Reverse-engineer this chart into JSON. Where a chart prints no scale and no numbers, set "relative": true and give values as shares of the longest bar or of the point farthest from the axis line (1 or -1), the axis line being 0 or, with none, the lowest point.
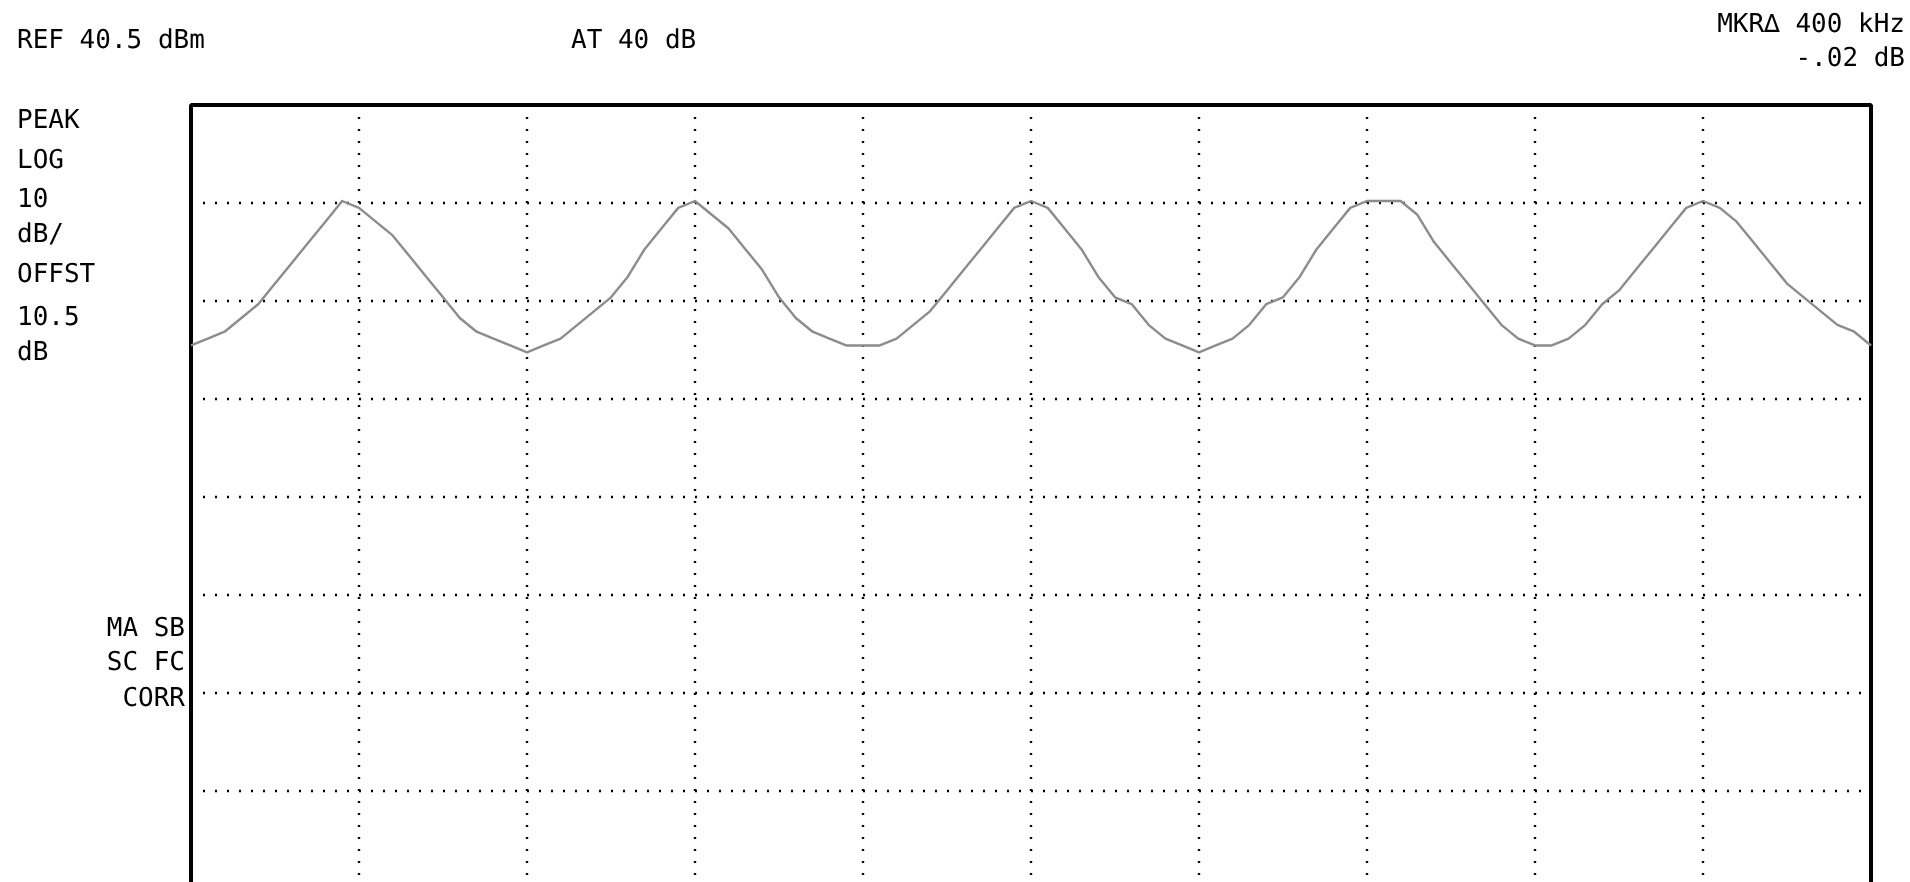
{
  "chart_data": {
    "type": "line",
    "title": "REF 40.5 dBm",
    "subtitle": "AT 40 dB",
    "relative": true,
    "grid": true,
    "annotations": [
      "MKR∆ 400 kHz",
      "-.02 dB",
      "PEAK",
      "LOG",
      "10",
      "dB/",
      "OFFST",
      "10.5",
      "dB",
      "MA SB",
      "SC FC",
      "CORR"
    ],
    "categories": [
      null,
      null,
      null,
      null,
      null,
      null,
      null,
      null,
      null,
      null,
      null,
      null,
      null,
      null,
      null,
      null,
      null,
      null,
      null,
      null,
      null,
      null,
      null,
      null,
      null,
      null,
      null,
      null,
      null,
      null,
      null,
      null,
      null,
      null,
      null,
      null,
      null,
      null,
      null,
      null,
      null,
      null,
      null,
      null,
      null,
      null,
      null,
      null,
      null,
      null,
      null,
      null,
      null,
      null,
      null,
      null,
      null,
      null,
      null,
      null,
      null,
      null,
      null,
      null,
      null,
      null,
      null,
      null,
      null,
      null,
      null,
      null,
      null,
      null,
      null,
      null,
      null,
      null,
      null,
      null,
      null,
      null,
      null,
      null,
      null,
      null,
      null,
      null,
      null,
      null,
      null,
      null,
      null,
      null,
      null,
      null,
      null,
      null,
      null,
      null,
      null
    ],
    "series": [
      {
        "type": "line",
        "color": "#8c8c8c",
        "marker": "none",
        "values": [
          0.79,
          0.8,
          0.81,
          0.83,
          0.85,
          0.88,
          0.91,
          0.94,
          0.97,
          1.0,
          0.99,
          0.97,
          0.95,
          0.92,
          0.89,
          0.86,
          0.83,
          0.81,
          0.8,
          0.79,
          0.78,
          0.79,
          0.8,
          0.82,
          0.84,
          0.86,
          0.89,
          0.93,
          0.96,
          0.99,
          1.0,
          0.98,
          0.96,
          0.93,
          0.9,
          0.86,
          0.83,
          0.81,
          0.8,
          0.79,
          0.79,
          0.79,
          0.8,
          0.82,
          0.84,
          0.87,
          0.9,
          0.93,
          0.96,
          0.99,
          1.0,
          0.99,
          0.96,
          0.93,
          0.89,
          0.86,
          0.85,
          0.82,
          0.8,
          0.79,
          0.78,
          0.79,
          0.8,
          0.82,
          0.85,
          0.86,
          0.89,
          0.93,
          0.96,
          0.99,
          1.0,
          1.0,
          1.0,
          0.98,
          0.94,
          0.91,
          0.88,
          0.85,
          0.82,
          0.8,
          0.79,
          0.79,
          0.8,
          0.82,
          0.85,
          0.87,
          0.9,
          0.93,
          0.96,
          0.99,
          1.0,
          0.99,
          0.97,
          0.94,
          0.91,
          0.88,
          0.86,
          0.84,
          0.82,
          0.81,
          0.79
        ]
      }
    ]
  }
}
